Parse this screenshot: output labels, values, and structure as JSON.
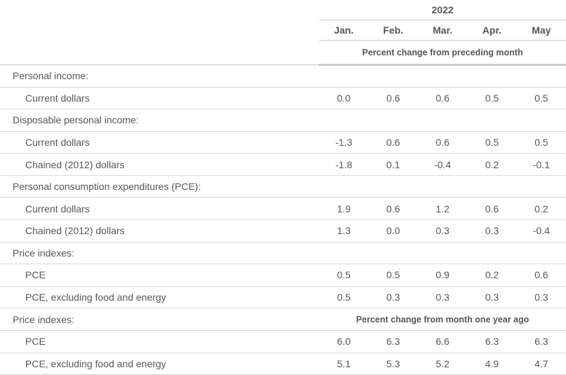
{
  "colors": {
    "text": "#54565b",
    "row_border": "#dadada",
    "header_border": "#cbcbcb",
    "thick_border": "#cccccc",
    "background": "#ffffff"
  },
  "table": {
    "year": "2022",
    "months": [
      "Jan.",
      "Feb.",
      "Mar.",
      "Apr.",
      "May"
    ],
    "spanner1": "Percent change from preceding month",
    "spanner2": "Percent change from month one year ago",
    "rows": [
      {
        "type": "section",
        "label": "Personal income:"
      },
      {
        "type": "item",
        "label": "Current dollars",
        "values": [
          "0.0",
          "0.6",
          "0.6",
          "0.5",
          "0.5"
        ]
      },
      {
        "type": "section",
        "label": "Disposable personal income:"
      },
      {
        "type": "item",
        "label": "Current dollars",
        "values": [
          "-1.3",
          "0.6",
          "0.6",
          "0.5",
          "0.5"
        ]
      },
      {
        "type": "item",
        "label": "Chained (2012) dollars",
        "values": [
          "-1.8",
          "0.1",
          "-0.4",
          "0.2",
          "-0.1"
        ]
      },
      {
        "type": "section",
        "label": "Personal consumption expenditures (PCE):"
      },
      {
        "type": "item",
        "label": "Current dollars",
        "values": [
          "1.9",
          "0.6",
          "1.2",
          "0.6",
          "0.2"
        ]
      },
      {
        "type": "item",
        "label": "Chained (2012) dollars",
        "values": [
          "1.3",
          "0.0",
          "0.3",
          "0.3",
          "-0.4"
        ]
      },
      {
        "type": "section",
        "label": "Price indexes:"
      },
      {
        "type": "item",
        "label": "PCE",
        "values": [
          "0.5",
          "0.5",
          "0.9",
          "0.2",
          "0.6"
        ]
      },
      {
        "type": "item",
        "label": "PCE, excluding food and energy",
        "values": [
          "0.5",
          "0.3",
          "0.3",
          "0.3",
          "0.3"
        ]
      },
      {
        "type": "section-spanner",
        "label": "Price indexes:"
      },
      {
        "type": "item",
        "label": "PCE",
        "values": [
          "6.0",
          "6.3",
          "6.6",
          "6.3",
          "6.3"
        ]
      },
      {
        "type": "item",
        "label": "PCE, excluding food and energy",
        "values": [
          "5.1",
          "5.3",
          "5.2",
          "4.9",
          "4.7"
        ]
      }
    ]
  },
  "chart_data": {
    "type": "table",
    "title": "2022",
    "columns": [
      "Jan.",
      "Feb.",
      "Mar.",
      "Apr.",
      "May"
    ],
    "sections": [
      {
        "heading": "Personal income:",
        "unit": "Percent change from preceding month",
        "rows": [
          {
            "label": "Current dollars",
            "values": [
              0.0,
              0.6,
              0.6,
              0.5,
              0.5
            ]
          }
        ]
      },
      {
        "heading": "Disposable personal income:",
        "unit": "Percent change from preceding month",
        "rows": [
          {
            "label": "Current dollars",
            "values": [
              -1.3,
              0.6,
              0.6,
              0.5,
              0.5
            ]
          },
          {
            "label": "Chained (2012) dollars",
            "values": [
              -1.8,
              0.1,
              -0.4,
              0.2,
              -0.1
            ]
          }
        ]
      },
      {
        "heading": "Personal consumption expenditures (PCE):",
        "unit": "Percent change from preceding month",
        "rows": [
          {
            "label": "Current dollars",
            "values": [
              1.9,
              0.6,
              1.2,
              0.6,
              0.2
            ]
          },
          {
            "label": "Chained (2012) dollars",
            "values": [
              1.3,
              0.0,
              0.3,
              0.3,
              -0.4
            ]
          }
        ]
      },
      {
        "heading": "Price indexes:",
        "unit": "Percent change from preceding month",
        "rows": [
          {
            "label": "PCE",
            "values": [
              0.5,
              0.5,
              0.9,
              0.2,
              0.6
            ]
          },
          {
            "label": "PCE, excluding food and energy",
            "values": [
              0.5,
              0.3,
              0.3,
              0.3,
              0.3
            ]
          }
        ]
      },
      {
        "heading": "Price indexes:",
        "unit": "Percent change from month one year ago",
        "rows": [
          {
            "label": "PCE",
            "values": [
              6.0,
              6.3,
              6.6,
              6.3,
              6.3
            ]
          },
          {
            "label": "PCE, excluding food and energy",
            "values": [
              5.1,
              5.3,
              5.2,
              4.9,
              4.7
            ]
          }
        ]
      }
    ]
  }
}
